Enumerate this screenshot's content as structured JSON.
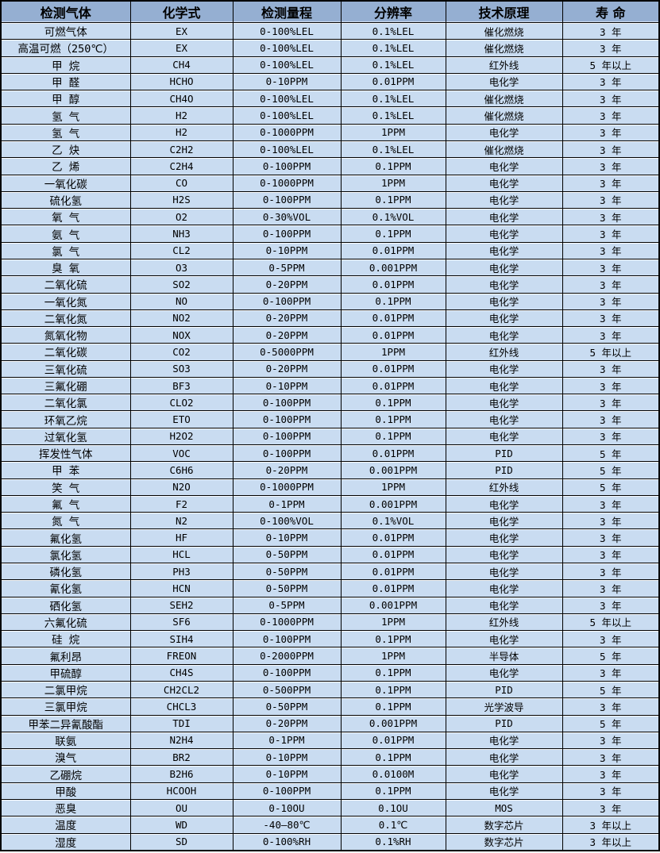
{
  "colors": {
    "header_bg": "#95AFD2",
    "row_bg": "#C9DCF1",
    "border": "#000000",
    "text": "#000000"
  },
  "chart_data": {
    "type": "table",
    "columns": [
      "检测气体",
      "化学式",
      "检测量程",
      "分辨率",
      "技术原理",
      "寿 命"
    ],
    "rows": [
      [
        "可燃气体",
        "EX",
        "0-100%LEL",
        "0.1%LEL",
        "催化燃烧",
        "3 年"
      ],
      [
        "高温可燃（250℃）",
        "EX",
        "0-100%LEL",
        "0.1%LEL",
        "催化燃烧",
        "3 年"
      ],
      [
        "甲 烷",
        "CH4",
        "0-100%LEL",
        "0.1%LEL",
        "红外线",
        "5 年以上"
      ],
      [
        "甲 醛",
        "HCHO",
        "0-10PPM",
        "0.01PPM",
        "电化学",
        "3 年"
      ],
      [
        "甲 醇",
        "CH4O",
        "0-100%LEL",
        "0.1%LEL",
        "催化燃烧",
        "3 年"
      ],
      [
        "氢 气",
        "H2",
        "0-100%LEL",
        "0.1%LEL",
        "催化燃烧",
        "3 年"
      ],
      [
        "氢 气",
        "H2",
        "0-1000PPM",
        "1PPM",
        "电化学",
        "3 年"
      ],
      [
        "乙 炔",
        "C2H2",
        "0-100%LEL",
        "0.1%LEL",
        "催化燃烧",
        "3 年"
      ],
      [
        "乙 烯",
        "C2H4",
        "0-100PPM",
        "0.1PPM",
        "电化学",
        "3 年"
      ],
      [
        "一氧化碳",
        "CO",
        "0-1000PPM",
        "1PPM",
        "电化学",
        "3 年"
      ],
      [
        "硫化氢",
        "H2S",
        "0-100PPM",
        "0.1PPM",
        "电化学",
        "3 年"
      ],
      [
        "氧 气",
        "O2",
        "0-30%VOL",
        "0.1%VOL",
        "电化学",
        "3 年"
      ],
      [
        "氨 气",
        "NH3",
        "0-100PPM",
        "0.1PPM",
        "电化学",
        "3 年"
      ],
      [
        "氯 气",
        "CL2",
        "0-10PPM",
        "0.01PPM",
        "电化学",
        "3 年"
      ],
      [
        "臭 氧",
        "O3",
        "0-5PPM",
        "0.001PPM",
        "电化学",
        "3 年"
      ],
      [
        "二氧化硫",
        "SO2",
        "0-20PPM",
        "0.01PPM",
        "电化学",
        "3 年"
      ],
      [
        "一氧化氮",
        "NO",
        "0-100PPM",
        "0.1PPM",
        "电化学",
        "3 年"
      ],
      [
        "二氧化氮",
        "NO2",
        "0-20PPM",
        "0.01PPM",
        "电化学",
        "3 年"
      ],
      [
        "氮氧化物",
        "NOX",
        "0-20PPM",
        "0.01PPM",
        "电化学",
        "3 年"
      ],
      [
        "二氧化碳",
        "CO2",
        "0-5000PPM",
        "1PPM",
        "红外线",
        "5 年以上"
      ],
      [
        "三氧化硫",
        "SO3",
        "0-20PPM",
        "0.01PPM",
        "电化学",
        "3 年"
      ],
      [
        "三氟化硼",
        "BF3",
        "0-10PPM",
        "0.01PPM",
        "电化学",
        "3 年"
      ],
      [
        "二氧化氯",
        "CLO2",
        "0-100PPM",
        "0.1PPM",
        "电化学",
        "3 年"
      ],
      [
        "环氧乙烷",
        "ETO",
        "0-100PPM",
        "0.1PPM",
        "电化学",
        "3 年"
      ],
      [
        "过氧化氢",
        "H2O2",
        "0-100PPM",
        "0.1PPM",
        "电化学",
        "3 年"
      ],
      [
        "挥发性气体",
        "VOC",
        "0-100PPM",
        "0.01PPM",
        "PID",
        "5 年"
      ],
      [
        "甲 苯",
        "C6H6",
        "0-20PPM",
        "0.001PPM",
        "PID",
        "5 年"
      ],
      [
        "笑 气",
        "N2O",
        "0-1000PPM",
        "1PPM",
        "红外线",
        "5 年"
      ],
      [
        "氟 气",
        "F2",
        "0-1PPM",
        "0.001PPM",
        "电化学",
        "3 年"
      ],
      [
        "氮 气",
        "N2",
        "0-100%VOL",
        "0.1%VOL",
        "电化学",
        "3 年"
      ],
      [
        "氟化氢",
        "HF",
        "0-10PPM",
        "0.01PPM",
        "电化学",
        "3 年"
      ],
      [
        "氯化氢",
        "HCL",
        "0-50PPM",
        "0.01PPM",
        "电化学",
        "3 年"
      ],
      [
        "磷化氢",
        "PH3",
        "0-50PPM",
        "0.01PPM",
        "电化学",
        "3 年"
      ],
      [
        "氰化氢",
        "HCN",
        "0-50PPM",
        "0.01PPM",
        "电化学",
        "3 年"
      ],
      [
        "硒化氢",
        "SEH2",
        "0-5PPM",
        "0.001PPM",
        "电化学",
        "3 年"
      ],
      [
        "六氟化硫",
        "SF6",
        "0-1000PPM",
        "1PPM",
        "红外线",
        "5 年以上"
      ],
      [
        "硅 烷",
        "SIH4",
        "0-100PPM",
        "0.1PPM",
        "电化学",
        "3 年"
      ],
      [
        "氟利昂",
        "FREON",
        "0-2000PPM",
        "1PPM",
        "半导体",
        "5 年"
      ],
      [
        "甲硫醇",
        "CH4S",
        "0-100PPM",
        "0.1PPM",
        "电化学",
        "3 年"
      ],
      [
        "二氯甲烷",
        "CH2CL2",
        "0-500PPM",
        "0.1PPM",
        "PID",
        "5 年"
      ],
      [
        "三氯甲烷",
        "CHCL3",
        "0-50PPM",
        "0.1PPM",
        "光学波导",
        "3 年"
      ],
      [
        "甲苯二异氰酸酯",
        "TDI",
        "0-20PPM",
        "0.001PPM",
        "PID",
        "5 年"
      ],
      [
        "联氨",
        "N2H4",
        "0-1PPM",
        "0.01PPM",
        "电化学",
        "3 年"
      ],
      [
        "溴气",
        "BR2",
        "0-10PPM",
        "0.1PPM",
        "电化学",
        "3 年"
      ],
      [
        "乙硼烷",
        "B2H6",
        "0-10PPM",
        "0.0100M",
        "电化学",
        "3 年"
      ],
      [
        "甲酸",
        "HCOOH",
        "0-100PPM",
        "0.1PPM",
        "电化学",
        "3 年"
      ],
      [
        "恶臭",
        "OU",
        "0-10OU",
        "0.1OU",
        "MOS",
        "3 年"
      ],
      [
        "温度",
        "WD",
        "-40—80℃",
        "0.1℃",
        "数字芯片",
        "3 年以上"
      ],
      [
        "湿度",
        "SD",
        "0-100%RH",
        "0.1%RH",
        "数字芯片",
        "3 年以上"
      ]
    ],
    "column_cell_names": [
      "cell-gas-name",
      "cell-chemical-formula",
      "cell-detection-range",
      "cell-resolution",
      "cell-tech-principle",
      "cell-lifespan"
    ]
  }
}
